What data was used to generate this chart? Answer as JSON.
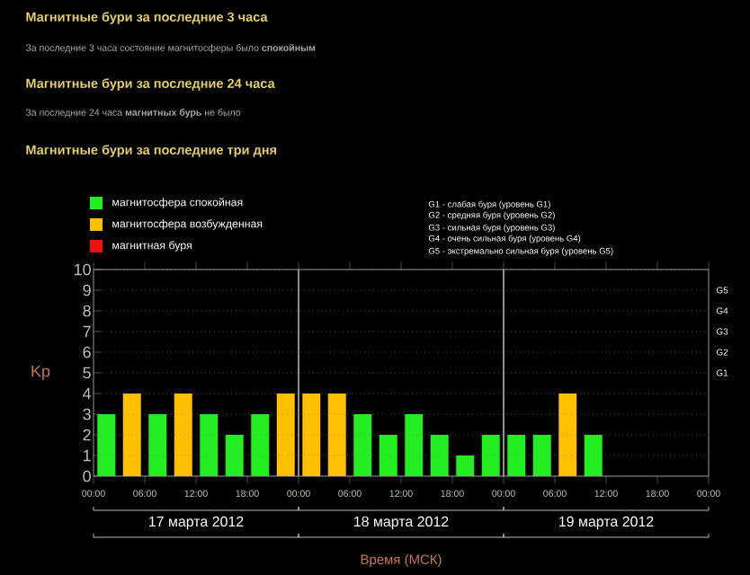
{
  "chart_data": {
    "type": "bar",
    "title": "Магнитные бури за последние три дня",
    "annotations": [
      "Магнитные бури за последние 3 часа",
      "За последние 3 часа состояние магнитосферы было **спокойным**",
      "Магнитные бури за последние 24 часа",
      "За последние 24 часа **магнитных бурь** не было",
      "G1 - слабая буря (уровень G1)",
      "G2 - средняя буря (уровень G2)",
      "G3 - сильная буря (уровень G3)",
      "G4 - очень сильная буря (уровень G4)",
      "G5 - экстремально сильная буря (уровень G5)",
      "17 марта 2012",
      "18 марта 2012",
      "19 марта 2012",
      "G1",
      "G2",
      "G3",
      "G4",
      "G5"
    ],
    "x": [
      "2012-03-17T01:30",
      "2012-03-17T04:30",
      "2012-03-17T07:30",
      "2012-03-17T10:30",
      "2012-03-17T13:30",
      "2012-03-17T16:30",
      "2012-03-17T19:30",
      "2012-03-17T22:30",
      "2012-03-18T01:30",
      "2012-03-18T04:30",
      "2012-03-18T07:30",
      "2012-03-18T10:30",
      "2012-03-18T13:30",
      "2012-03-18T16:30",
      "2012-03-18T19:30",
      "2012-03-18T22:30",
      "2012-03-19T01:30",
      "2012-03-19T04:30",
      "2012-03-19T07:30",
      "2012-03-19T10:30"
    ],
    "series": [
      {
        "name": "магнитосфера спокойная",
        "color": "#22ee22",
        "values": [
          3,
          null,
          3,
          null,
          3,
          2,
          3,
          null,
          null,
          null,
          3,
          2,
          3,
          2,
          1,
          2,
          2,
          2,
          null,
          2
        ]
      },
      {
        "name": "магнитосфера возбужденная",
        "color": "#ffc000",
        "values": [
          null,
          4,
          null,
          4,
          null,
          null,
          null,
          4,
          4,
          4,
          null,
          null,
          null,
          null,
          null,
          null,
          null,
          null,
          4,
          null
        ]
      },
      {
        "name": "магнитная буря",
        "color": "#ee1111",
        "values": [
          null,
          null,
          null,
          null,
          null,
          null,
          null,
          null,
          null,
          null,
          null,
          null,
          null,
          null,
          null,
          null,
          null,
          null,
          null,
          null
        ]
      }
    ],
    "xlabel": "Время (МСК)",
    "ylabel": "Kp",
    "xlim": [
      "2012-03-17T00:00",
      "2012-03-20T00:00"
    ],
    "xticks": [
      {
        "value": "2012-03-17T00:00",
        "label": "00:00"
      },
      {
        "value": "2012-03-17T06:00",
        "label": "06:00"
      },
      {
        "value": "2012-03-17T12:00",
        "label": "12:00"
      },
      {
        "value": "2012-03-17T18:00",
        "label": "18:00"
      },
      {
        "value": "2012-03-18T00:00",
        "label": "00:00"
      },
      {
        "value": "2012-03-18T06:00",
        "label": "06:00"
      },
      {
        "value": "2012-03-18T12:00",
        "label": "12:00"
      },
      {
        "value": "2012-03-18T18:00",
        "label": "18:00"
      },
      {
        "value": "2012-03-19T00:00",
        "label": "00:00"
      },
      {
        "value": "2012-03-19T06:00",
        "label": "06:00"
      },
      {
        "value": "2012-03-19T12:00",
        "label": "12:00"
      },
      {
        "value": "2012-03-19T18:00",
        "label": "18:00"
      },
      {
        "value": "2012-03-20T00:00",
        "label": "00:00"
      }
    ],
    "ylim": [
      0,
      10
    ],
    "yticks": [
      0,
      1,
      2,
      3,
      4,
      5,
      6,
      7,
      8,
      9,
      10
    ],
    "ref_lines": [
      {
        "axis": "x",
        "value": "2012-03-18T00:00",
        "color": "#b0b0b0"
      },
      {
        "axis": "x",
        "value": "2012-03-19T00:00",
        "color": "#b0b0b0"
      }
    ],
    "grid": "y",
    "legend": "top left"
  }
}
